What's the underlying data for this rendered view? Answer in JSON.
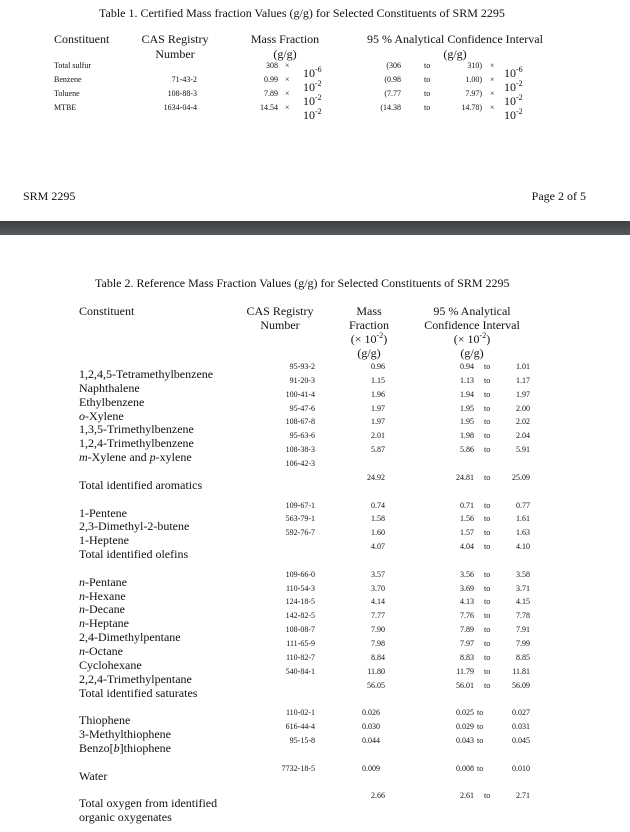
{
  "table1": {
    "title": "Table 1.  Certified Mass fraction Values (g/g) for Selected Constituents of SRM 2295",
    "headers": {
      "constituent": "Constituent",
      "cas": [
        "CAS Registry",
        "Number"
      ],
      "mass": [
        "Mass Fraction",
        "(g/g)"
      ],
      "ci": [
        "95 % Analytical Confidence Interval",
        "(g/g)"
      ]
    },
    "times": "×",
    "to": "to",
    "rows": [
      {
        "name": "Total sulfur",
        "cas": "",
        "value": "308",
        "base": "10",
        "exp": "-6",
        "low": "(306",
        "high": "310)"
      },
      {
        "name": "Benzene",
        "cas": "71-43-2",
        "value": "0.99",
        "base": "10",
        "exp": "-2",
        "low": "(0.98",
        "high": "1.00)"
      },
      {
        "name": "Toluene",
        "cas": "108-88-3",
        "value": "7.89",
        "base": "10",
        "exp": "-2",
        "low": "(7.77",
        "high": "7.97)"
      },
      {
        "name": "MTBE",
        "cas": "1634-04-4",
        "value": "14.54",
        "base": "10",
        "exp": "-2",
        "low": "(14.38",
        "high": "14.78)"
      }
    ]
  },
  "footer": {
    "left": "SRM 2295",
    "right": "Page 2 of 5"
  },
  "table2": {
    "title": "Table 2.  Reference Mass Fraction Values (g/g) for Selected Constituents of SRM 2295",
    "headers": {
      "constituent": "Constituent",
      "cas": [
        "CAS Registry",
        "Number"
      ],
      "mass": [
        "Mass",
        "Fraction",
        "(× 10",
        "-2",
        ")",
        "(g/g)"
      ],
      "ci": [
        "95 % Analytical",
        "Confidence Interval",
        "(× 10",
        "-2",
        ")",
        "(g/g)"
      ]
    },
    "to": "to",
    "groups": [
      {
        "rows": [
          {
            "name": [
              {
                "t": "1,2,4,5-Tetramethylbenzene"
              }
            ],
            "cas": "95-93-2",
            "value": "0.96",
            "low": "0.94",
            "high": "1.01"
          },
          {
            "name": [
              {
                "t": "Naphthalene"
              }
            ],
            "cas": "91-20-3",
            "value": "1.15",
            "low": "1.13",
            "high": "1.17"
          },
          {
            "name": [
              {
                "t": "Ethylbenzene"
              }
            ],
            "cas": "100-41-4",
            "value": "1.96",
            "low": "1.94",
            "high": "1.97"
          },
          {
            "name": [
              {
                "t": "o",
                "i": true
              },
              {
                "t": "-Xylene"
              }
            ],
            "cas": "95-47-6",
            "value": "1.97",
            "low": "1.95",
            "high": "2.00"
          },
          {
            "name": [
              {
                "t": "1,3,5-Trimethylbenzene"
              }
            ],
            "cas": "108-67-8",
            "value": "1.97",
            "low": "1.95",
            "high": "2.02"
          },
          {
            "name": [
              {
                "t": "1,2,4-Trimethylbenzene"
              }
            ],
            "cas": "95-63-6",
            "value": "2.01",
            "low": "1.98",
            "high": "2.04"
          },
          {
            "name": [
              {
                "t": "m",
                "i": true
              },
              {
                "t": "-Xylene and "
              },
              {
                "t": "p",
                "i": true
              },
              {
                "t": "-xylene"
              }
            ],
            "cas": "108-38-3",
            "value": "5.87",
            "low": "5.86",
            "high": "5.91"
          },
          {
            "name": [],
            "cas": "106-42-3",
            "value": "",
            "low": "",
            "high": ""
          },
          {
            "name": [
              {
                "t": "Total identified aromatics"
              }
            ],
            "cas": "",
            "value": "24.92",
            "low": "24.81",
            "high": "25.09"
          }
        ]
      },
      {
        "rows": [
          {
            "name": [
              {
                "t": "1-Pentene"
              }
            ],
            "cas": "109-67-1",
            "value": "0.74",
            "low": "0.71",
            "high": "0.77"
          },
          {
            "name": [
              {
                "t": "2,3-Dimethyl-2-butene"
              }
            ],
            "cas": "563-79-1",
            "value": "1.58",
            "low": "1.56",
            "high": "1.61"
          },
          {
            "name": [
              {
                "t": "1-Heptene"
              }
            ],
            "cas": "592-76-7",
            "value": "1.60",
            "low": "1.57",
            "high": "1.63"
          },
          {
            "name": [
              {
                "t": "Total identified olefins"
              }
            ],
            "cas": "",
            "value": "4.07",
            "low": "4.04",
            "high": "4.10"
          }
        ]
      },
      {
        "rows": [
          {
            "name": [
              {
                "t": "n",
                "i": true
              },
              {
                "t": "-Pentane"
              }
            ],
            "cas": "109-66-0",
            "value": "3.57",
            "low": "3.56",
            "high": "3.58"
          },
          {
            "name": [
              {
                "t": "n",
                "i": true
              },
              {
                "t": "-Hexane"
              }
            ],
            "cas": "110-54-3",
            "value": "3.70",
            "low": "3.69",
            "high": "3.71"
          },
          {
            "name": [
              {
                "t": "n",
                "i": true
              },
              {
                "t": "-Decane"
              }
            ],
            "cas": "124-18-5",
            "value": "4.14",
            "low": "4.13",
            "high": "4.15"
          },
          {
            "name": [
              {
                "t": "n",
                "i": true
              },
              {
                "t": "-Heptane"
              }
            ],
            "cas": "142-82-5",
            "value": "7.77",
            "low": "7.76",
            "high": "7.78"
          },
          {
            "name": [
              {
                "t": "2,4-Dimethylpentane"
              }
            ],
            "cas": "108-08-7",
            "value": "7.90",
            "low": "7.89",
            "high": "7.91"
          },
          {
            "name": [
              {
                "t": "n",
                "i": true
              },
              {
                "t": "-Octane"
              }
            ],
            "cas": "111-65-9",
            "value": "7.98",
            "low": "7.97",
            "high": "7.99"
          },
          {
            "name": [
              {
                "t": "Cyclohexane"
              }
            ],
            "cas": "110-82-7",
            "value": "8.84",
            "low": "8.83",
            "high": "8.85"
          },
          {
            "name": [
              {
                "t": "2,2,4-Trimethylpentane"
              }
            ],
            "cas": "540-84-1",
            "value": "11.80",
            "low": "11.79",
            "high": "11.81"
          },
          {
            "name": [
              {
                "t": "Total identified saturates"
              }
            ],
            "cas": "",
            "value": "56.05",
            "low": "56.01",
            "high": "56.09"
          }
        ]
      },
      {
        "rows": [
          {
            "name": [
              {
                "t": "Thiophene"
              }
            ],
            "cas": "110-02-1",
            "value": "0.026",
            "low": "0.025",
            "high": "0.027"
          },
          {
            "name": [
              {
                "t": "3-Methylthiophene"
              }
            ],
            "cas": "616-44-4",
            "value": "0.030",
            "low": "0.029",
            "high": "0.031"
          },
          {
            "name": [
              {
                "t": "Benzo["
              },
              {
                "t": "b",
                "i": true
              },
              {
                "t": "]thiophene"
              }
            ],
            "cas": "95-15-8",
            "value": "0.044",
            "low": "0.043",
            "high": "0.045"
          }
        ]
      },
      {
        "rows": [
          {
            "name": [
              {
                "t": "Water"
              }
            ],
            "cas": "7732-18-5",
            "value": "0.009",
            "low": "0.008",
            "high": "0.010"
          }
        ]
      },
      {
        "rows": [
          {
            "name": [
              {
                "t": "Total oxygen from identified"
              }
            ],
            "cas": "",
            "value": "2.66",
            "low": "2.61",
            "high": "2.71"
          },
          {
            "name": [
              {
                "t": "organic oxygenates"
              }
            ],
            "cas": "",
            "value": "",
            "low": "",
            "high": ""
          }
        ]
      }
    ]
  }
}
